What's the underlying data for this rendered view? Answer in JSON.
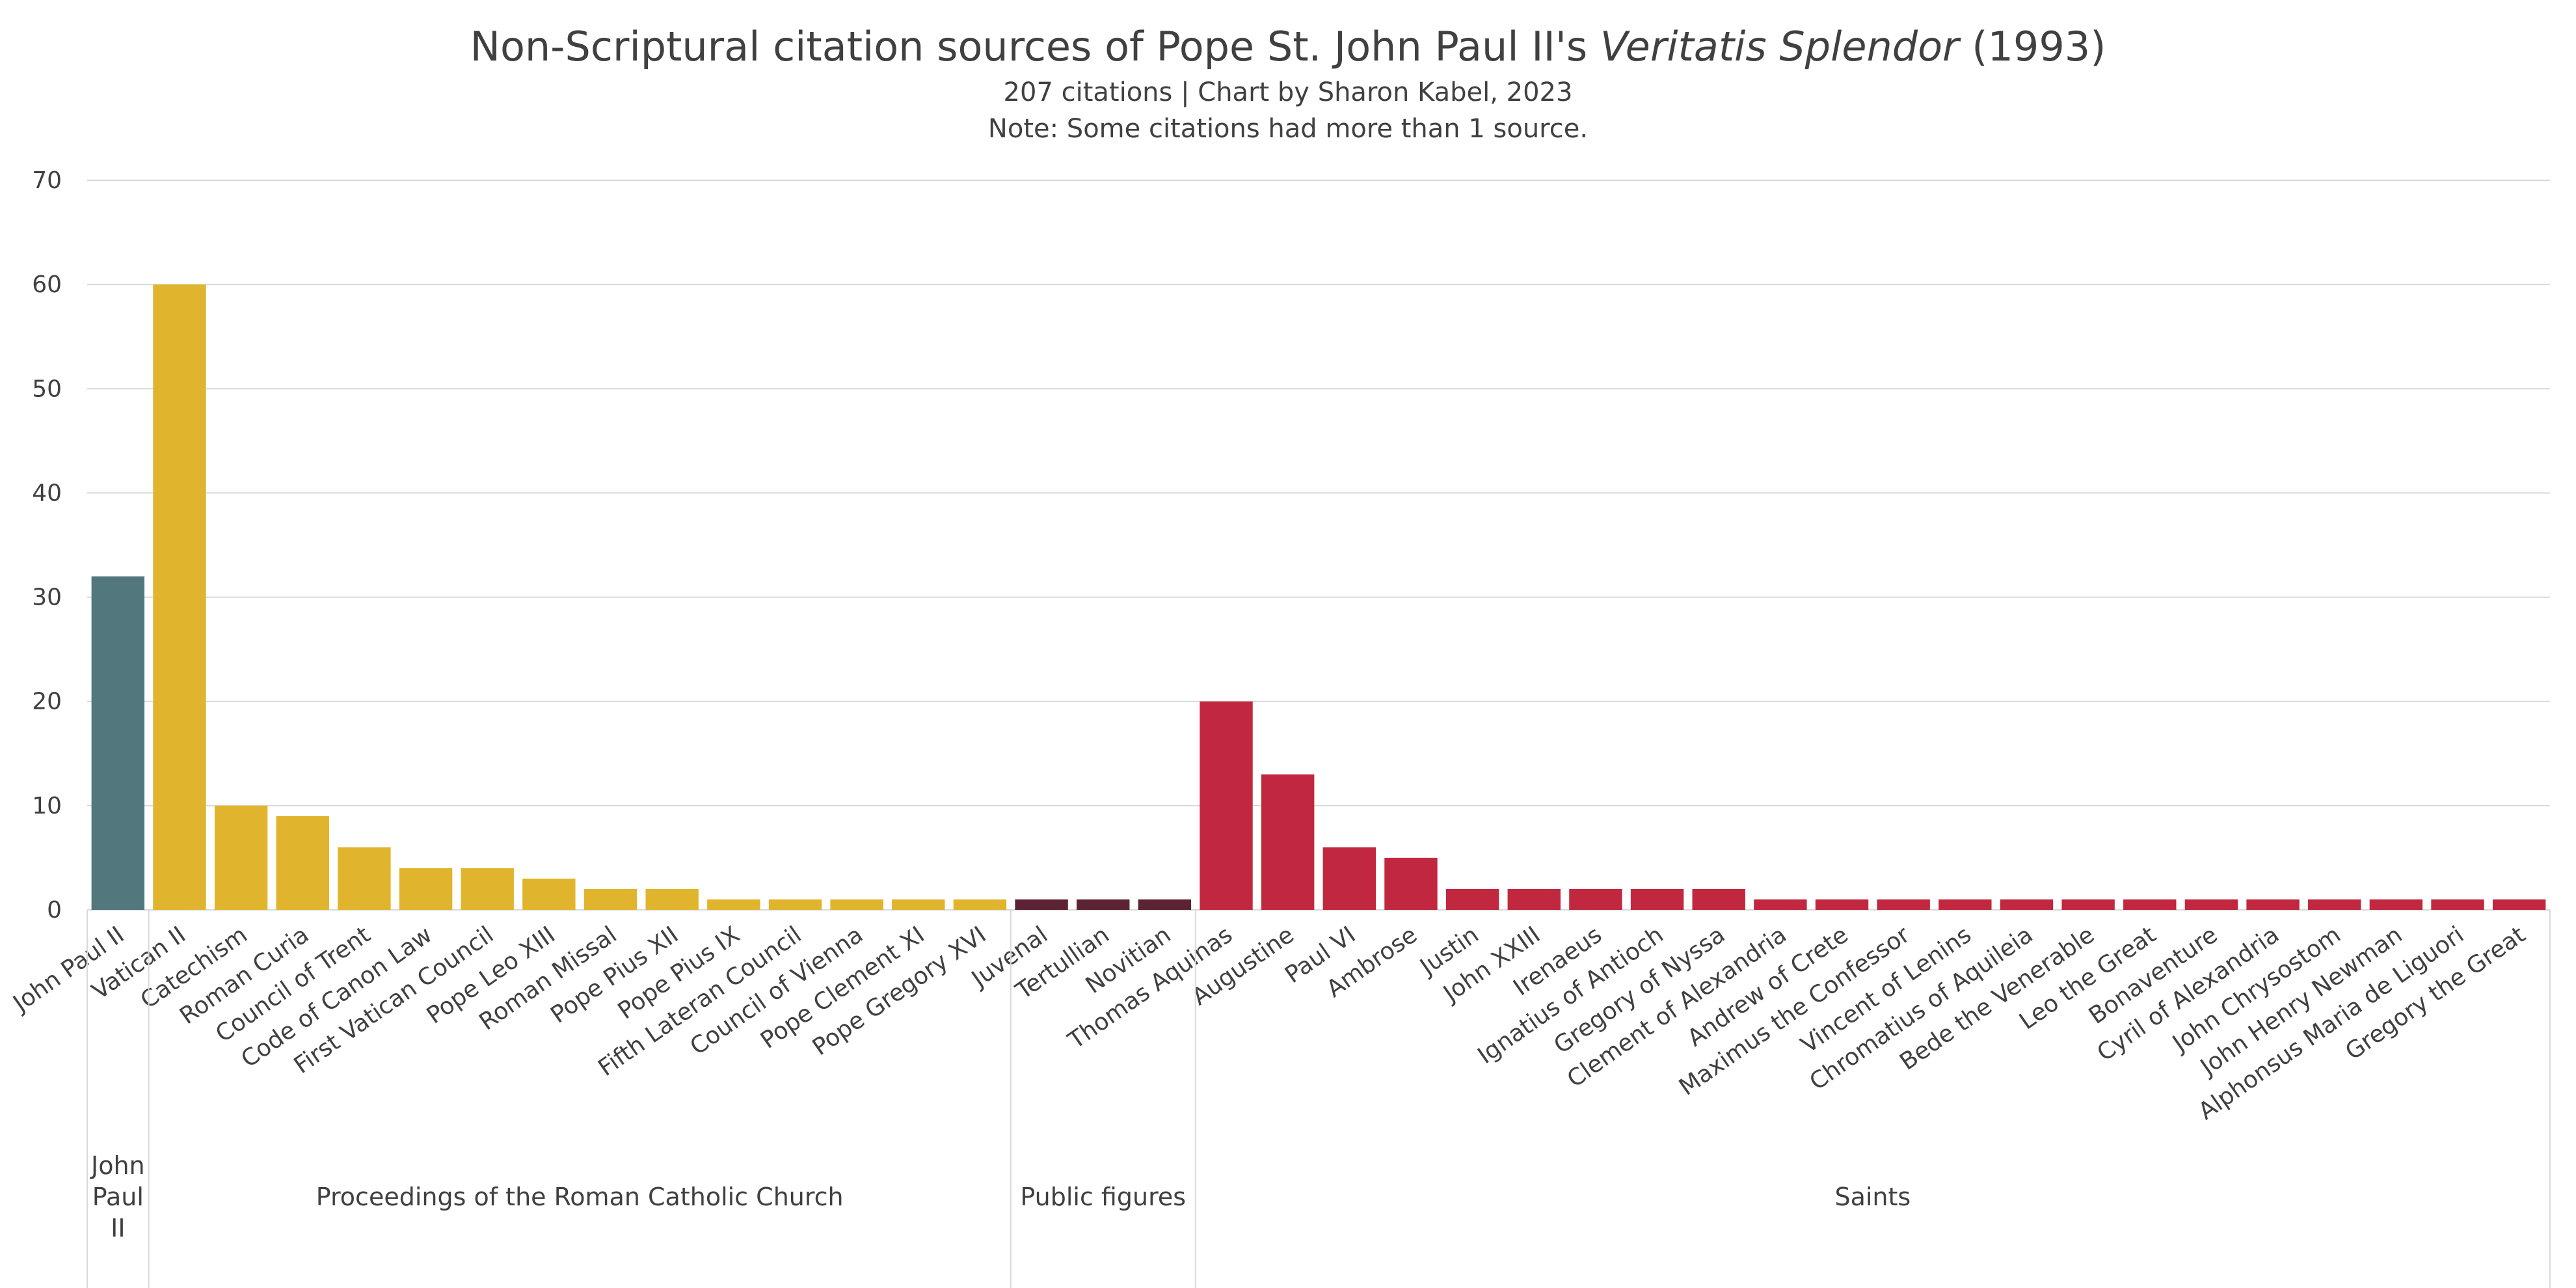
{
  "chart_data": {
    "type": "bar",
    "title": {
      "prefix": "Non-Scriptural citation sources of Pope St. John Paul II's ",
      "italic": "Veritatis Splendor",
      "suffix": " (1993)"
    },
    "subtitle": "207 citations | Chart by Sharon Kabel, 2023",
    "note": "Note: Some citations had more than 1 source.",
    "xlabel": "",
    "ylabel": "",
    "ylim": [
      0,
      70
    ],
    "yticks": [
      0,
      10,
      20,
      30,
      40,
      50,
      60,
      70
    ],
    "grid": true,
    "categories": [
      "John Paul II",
      "Vatican II",
      "Catechism",
      "Roman Curia",
      "Council of Trent",
      "Code of Canon Law",
      "First Vatican Council",
      "Pope Leo XIII",
      "Roman Missal",
      "Pope Pius XII",
      "Pope Pius IX",
      "Fifth Lateran Council",
      "Council of Vienna",
      "Pope Clement XI",
      "Pope Gregory XVI",
      "Juvenal",
      "Tertullian",
      "Novitian",
      "Thomas Aquinas",
      "Augustine",
      "Paul VI",
      "Ambrose",
      "Justin",
      "John XXIII",
      "Irenaeus",
      "Ignatius of Antioch",
      "Gregory of Nyssa",
      "Clement of Alexandria",
      "Andrew of Crete",
      "Maximus the Confessor",
      "Vincent of Lenins",
      "Chromatius of Aquileia",
      "Bede the Venerable",
      "Leo the Great",
      "Bonaventure",
      "Cyril of Alexandria",
      "John Chrysostom",
      "John Henry Newman",
      "Alphonsus Maria de Liguori",
      "Gregory the Great"
    ],
    "values": [
      32,
      60,
      10,
      9,
      6,
      4,
      4,
      3,
      2,
      2,
      1,
      1,
      1,
      1,
      1,
      1,
      1,
      1,
      20,
      13,
      6,
      5,
      2,
      2,
      2,
      2,
      2,
      1,
      1,
      1,
      1,
      1,
      1,
      1,
      1,
      1,
      1,
      1,
      1,
      1
    ],
    "groups": [
      {
        "name": "John Paul II",
        "lines": [
          "John",
          "Paul",
          "II"
        ],
        "start": 0,
        "end": 0,
        "color": "#52777c"
      },
      {
        "name": "Proceedings of the Roman Catholic Church",
        "lines": [
          "Proceedings of the Roman Catholic Church"
        ],
        "start": 1,
        "end": 14,
        "color": "#e0b52d"
      },
      {
        "name": "Public figures",
        "lines": [
          "Public figures"
        ],
        "start": 15,
        "end": 17,
        "color": "#5c2335"
      },
      {
        "name": "Saints",
        "lines": [
          "Saints"
        ],
        "start": 18,
        "end": 39,
        "color": "#c1283f"
      }
    ]
  }
}
